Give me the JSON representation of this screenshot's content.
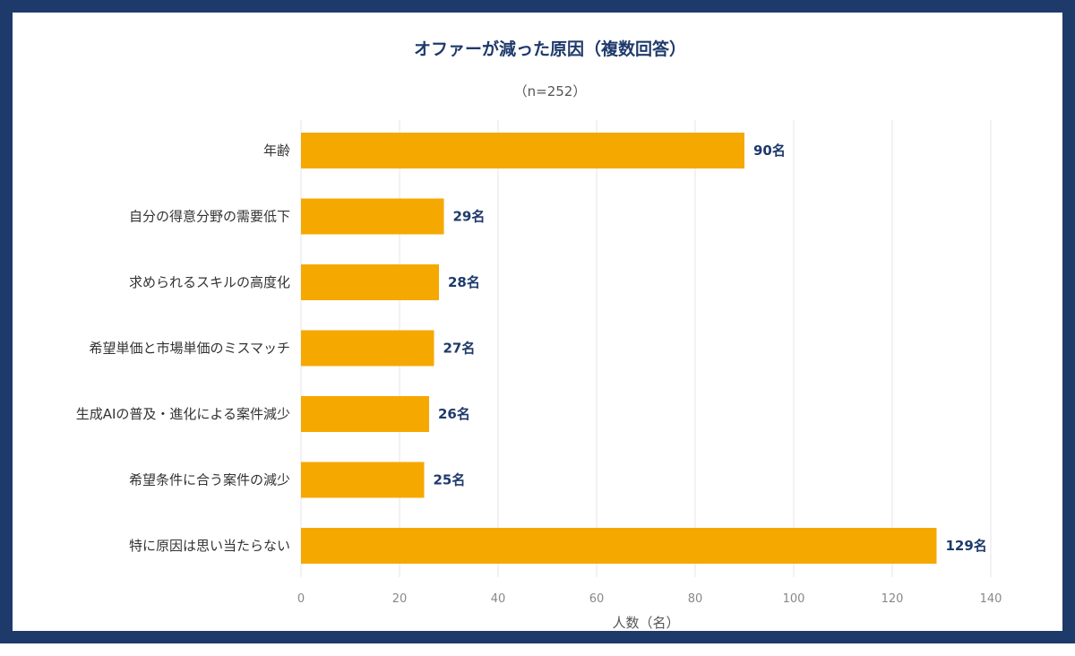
{
  "chart_data": {
    "type": "bar",
    "orientation": "horizontal",
    "title": "オファーが減った原因（複数回答）",
    "subtitle": "（n=252）",
    "xlabel": "人数（名）",
    "ylabel": "",
    "xlim": [
      0,
      140
    ],
    "x_ticks": [
      0,
      20,
      40,
      60,
      80,
      100,
      120,
      140
    ],
    "grid": true,
    "value_suffix": "名",
    "bar_color": "#f5a800",
    "categories": [
      "年齢",
      "自分の得意分野の需要低下",
      "求められるスキルの高度化",
      "希望単価と市場単価のミスマッチ",
      "生成AIの普及・進化による案件減少",
      "希望条件に合う案件の減少",
      "特に原因は思い当たらない"
    ],
    "values": [
      90,
      29,
      28,
      27,
      26,
      25,
      129
    ]
  }
}
